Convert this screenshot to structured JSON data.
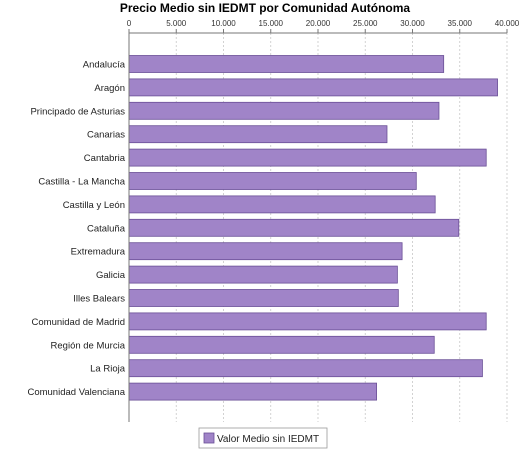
{
  "chart_data": {
    "type": "bar",
    "orientation": "horizontal",
    "title": "Precio Medio sin IEDMT por Comunidad Autónoma",
    "xlim": [
      0,
      40000
    ],
    "ticks": [
      0,
      5000,
      10000,
      15000,
      20000,
      25000,
      30000,
      35000,
      40000
    ],
    "tick_labels": [
      "0",
      "5.000",
      "10.000",
      "15.000",
      "20.000",
      "25.000",
      "30.000",
      "35.000",
      "40.000"
    ],
    "tick_position": "top",
    "grid": "vertical dashed",
    "bar_color": "#a084c8",
    "bar_edge_color": "#6a4f96",
    "legend_position": "bottom-center",
    "categories": [
      "Andalucía",
      "Aragón",
      "Principado de Asturias",
      "Canarias",
      "Cantabria",
      "Castilla - La Mancha",
      "Castilla y León",
      "Cataluña",
      "Extremadura",
      "Galicia",
      "Illes Balears",
      "Comunidad de Madrid",
      "Región de Murcia",
      "La Rioja",
      "Comunidad Valenciana"
    ],
    "series": [
      {
        "name": "Valor Medio sin IEDMT",
        "values": [
          33300,
          39000,
          32800,
          27300,
          37800,
          30400,
          32400,
          34900,
          28900,
          28400,
          28500,
          37800,
          32300,
          37400,
          26200
        ]
      }
    ]
  }
}
